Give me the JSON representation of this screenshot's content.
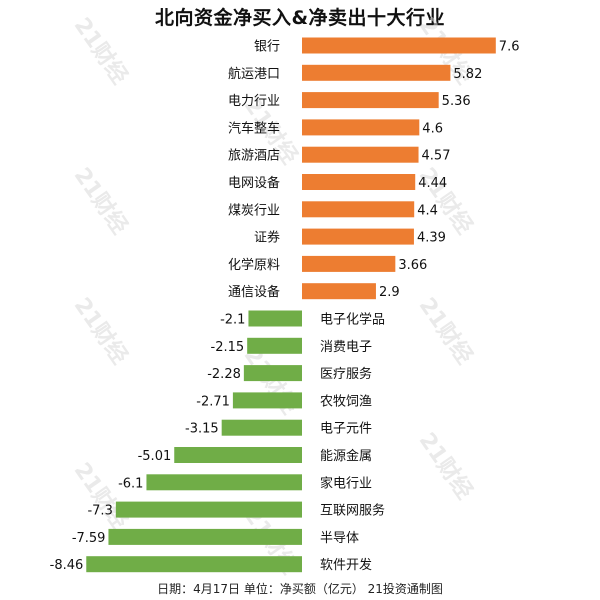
{
  "chart_data": {
    "type": "bar",
    "orientation": "horizontal",
    "title": "北向资金净买入&净卖出十大行业",
    "footer": "日期：4月17日 单位：净买额（亿元） 21投资通制图",
    "watermark": "21财经",
    "colors": {
      "positive": "#ED7D31",
      "negative": "#70AD47"
    },
    "categories": [
      "银行",
      "航运港口",
      "电力行业",
      "汽车整车",
      "旅游酒店",
      "电网设备",
      "煤炭行业",
      "证券",
      "化学原料",
      "通信设备",
      "电子化学品",
      "消费电子",
      "医疗服务",
      "农牧饲渔",
      "电子元件",
      "能源金属",
      "家电行业",
      "互联网服务",
      "半导体",
      "软件开发"
    ],
    "values": [
      7.6,
      5.82,
      5.36,
      4.6,
      4.57,
      4.44,
      4.4,
      4.39,
      3.66,
      2.9,
      -2.1,
      -2.15,
      -2.28,
      -2.71,
      -3.15,
      -5.01,
      -6.1,
      -7.3,
      -7.59,
      -8.46
    ],
    "value_labels": [
      "7.6",
      "5.82",
      "5.36",
      "4.6",
      "4.57",
      "4.44",
      "4.4",
      "4.39",
      "3.66",
      "2.9",
      "-2.1",
      "-2.15",
      "-2.28",
      "-2.71",
      "-3.15",
      "-5.01",
      "-6.1",
      "-7.3",
      "-7.59",
      "-8.46"
    ],
    "grid": false,
    "legend": "none"
  }
}
